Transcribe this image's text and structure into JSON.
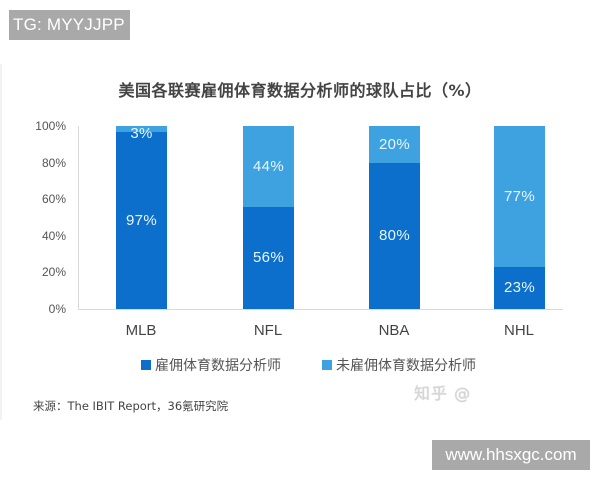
{
  "overlay": {
    "top_left_badge": "TG: MYYJJPP",
    "bottom_right_badge": "www.hhsxgc.com",
    "watermark": "知乎 @"
  },
  "colors": {
    "employed": "#0b6fcb",
    "not_employed": "#3ea2e0",
    "axis": "#d9d9d9"
  },
  "chart_data": {
    "type": "bar",
    "stacked": true,
    "title": "美国各联赛雇佣体育数据分析师的球队占比（%）",
    "xlabel": "",
    "ylabel": "",
    "ylim": [
      0,
      100
    ],
    "y_ticks": [
      "100%",
      "80%",
      "60%",
      "40%",
      "20%",
      "0%"
    ],
    "categories": [
      "MLB",
      "NFL",
      "NBA",
      "NHL"
    ],
    "series": [
      {
        "name": "雇佣体育数据分析师",
        "values": [
          97,
          56,
          80,
          23
        ],
        "labels": [
          "97%",
          "56%",
          "80%",
          "23%"
        ]
      },
      {
        "name": "未雇佣体育数据分析师",
        "values": [
          3,
          44,
          20,
          77
        ],
        "labels": [
          "3%",
          "44%",
          "20%",
          "77%"
        ]
      }
    ],
    "legend_position": "bottom",
    "grid": false,
    "source": "来源：The IBIT Report，36氪研究院"
  }
}
